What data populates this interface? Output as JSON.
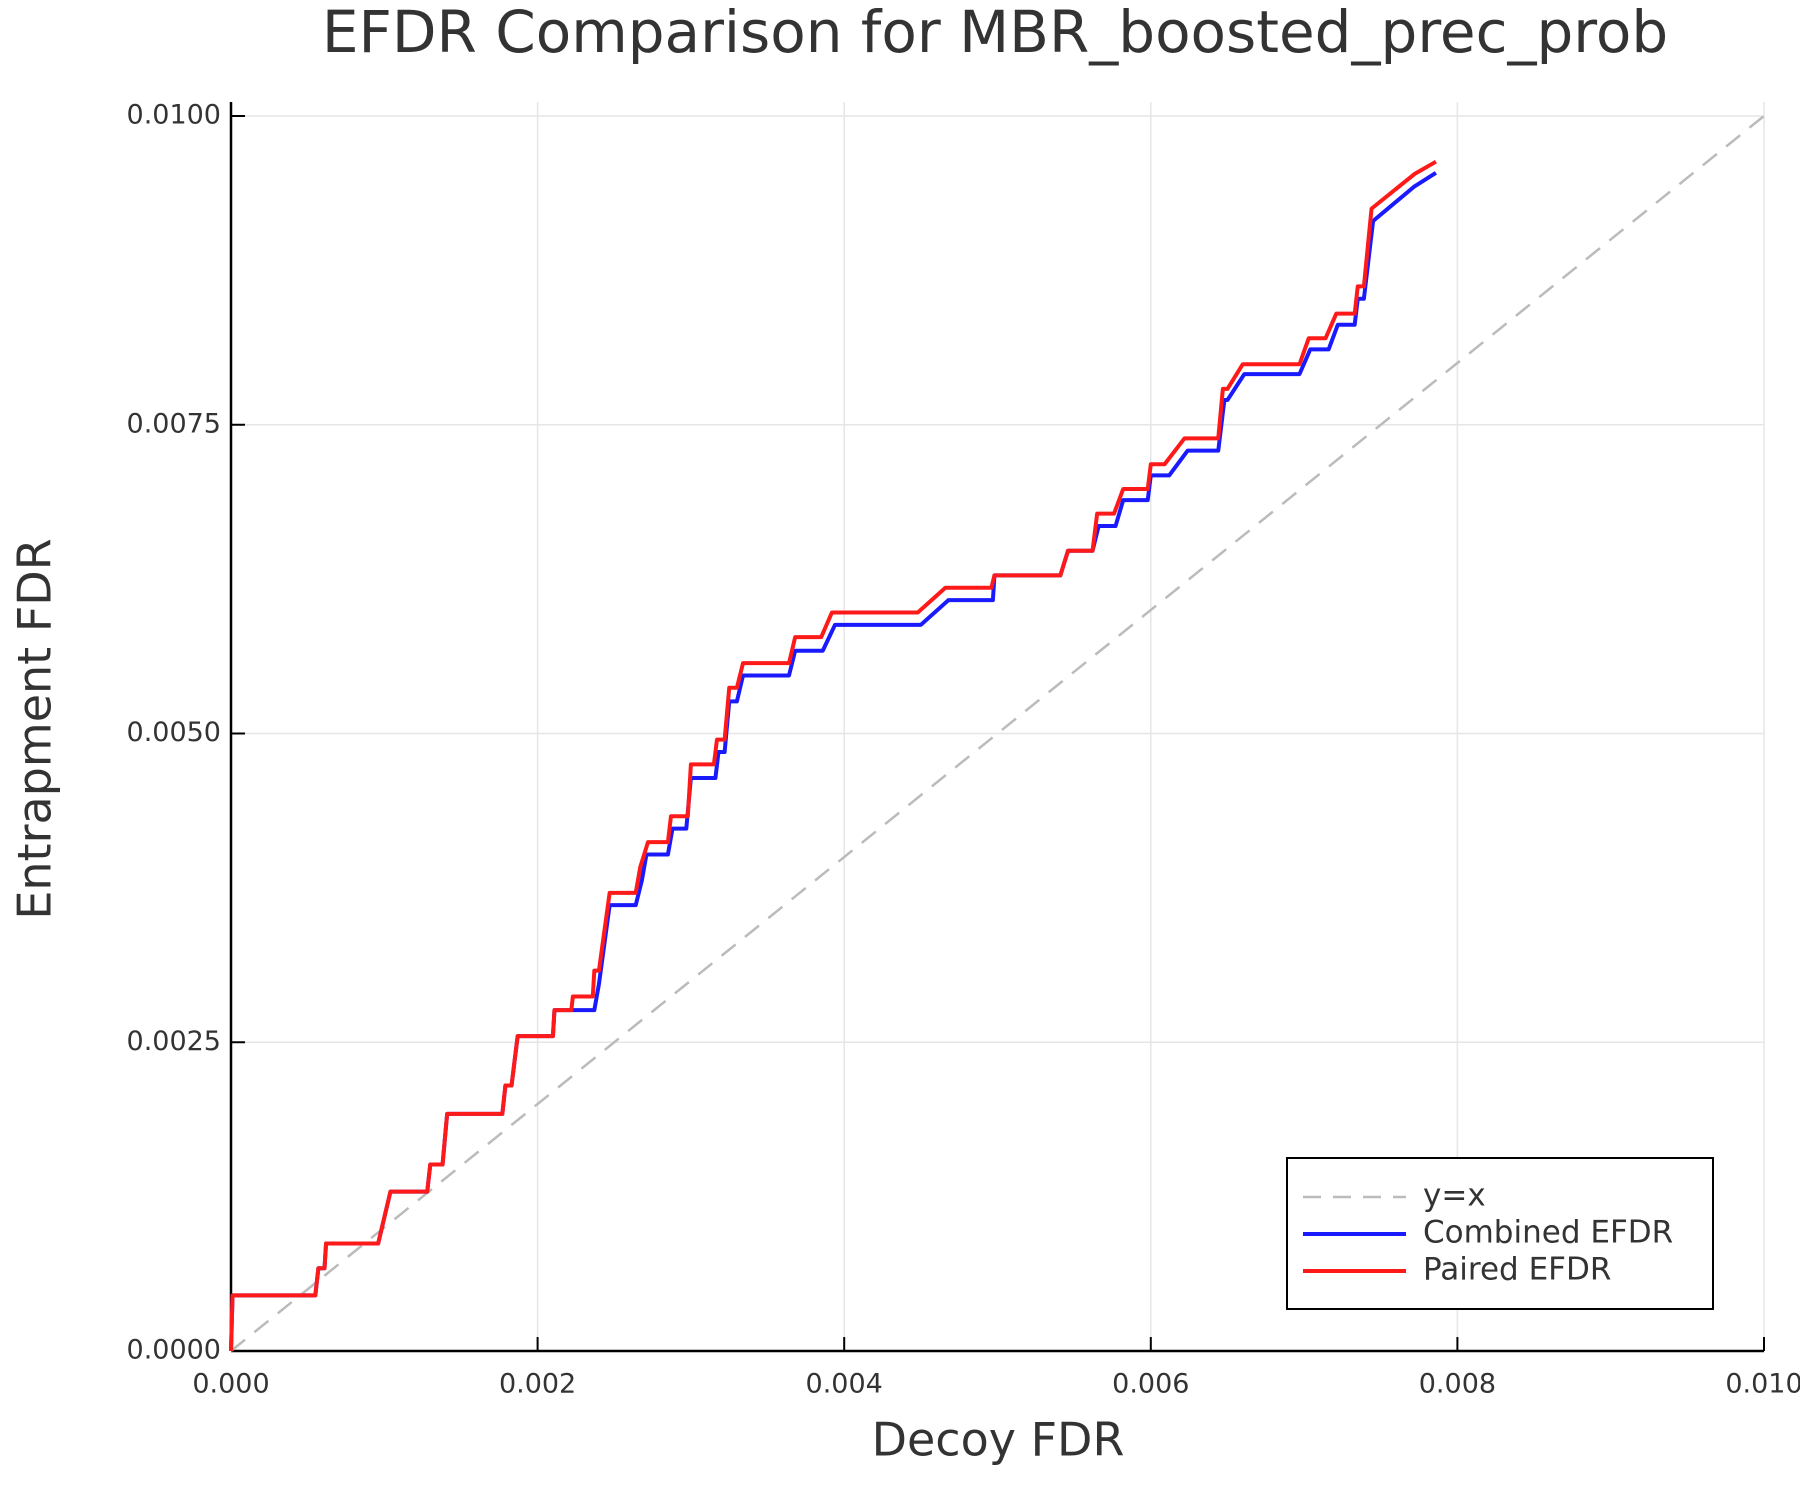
{
  "chart_data": {
    "type": "line",
    "title": "EFDR Comparison for MBR_boosted_prec_prob",
    "xlabel": "Decoy FDR",
    "ylabel": "Entrapment FDR",
    "xlim": [
      0,
      0.01
    ],
    "ylim": [
      0,
      0.01
    ],
    "xticks": [
      {
        "value": 0,
        "label": "0.000"
      },
      0.002,
      0.004,
      0.006,
      0.008,
      {
        "value": 0.01,
        "label": "0.010"
      }
    ],
    "yticks": [
      {
        "value": 0,
        "label": "0.0000"
      },
      0.0025,
      {
        "value": 0.005,
        "label": "0.0050"
      },
      {
        "value": 0.0075,
        "label": "0.0075"
      },
      {
        "value": 0.01,
        "label": "0.0100"
      }
    ],
    "grid": true,
    "legend": "lower right",
    "series": [
      {
        "name": "y=x",
        "color": "#bbbbbb",
        "dash": true,
        "x": [
          0,
          0.01
        ],
        "values": [
          0,
          0.01
        ]
      },
      {
        "name": "Combined EFDR",
        "color": "#1a1aff",
        "dash": false,
        "x": [
          0,
          1e-05,
          0.00055,
          0.00057,
          0.00061,
          0.00062,
          0.00096,
          0.00104,
          0.00128,
          0.0013,
          0.00138,
          0.00141,
          0.00177,
          0.00179,
          0.00183,
          0.00187,
          0.0021,
          0.00211,
          0.00237,
          0.0024,
          0.00247,
          0.00264,
          0.00268,
          0.00271,
          0.00285,
          0.00288,
          0.00297,
          0.003,
          0.00316,
          0.00318,
          0.00322,
          0.00325,
          0.0033,
          0.00334,
          0.00364,
          0.00368,
          0.00386,
          0.00394,
          0.0045,
          0.00468,
          0.00497,
          0.00498,
          0.00541,
          0.00546,
          0.00562,
          0.00566,
          0.00577,
          0.00582,
          0.00598,
          0.006,
          0.00612,
          0.00624,
          0.00644,
          0.00648,
          0.0065,
          0.00661,
          0.00697,
          0.00704,
          0.00716,
          0.00722,
          0.00733,
          0.00735,
          0.00739,
          0.00745,
          0.00772,
          0.00786
        ],
        "values": [
          0,
          0.00045,
          0.00045,
          0.00067,
          0.00067,
          0.00087,
          0.00087,
          0.00129,
          0.00129,
          0.00151,
          0.00151,
          0.00192,
          0.00192,
          0.00215,
          0.00215,
          0.00255,
          0.00255,
          0.00276,
          0.00276,
          0.00297,
          0.00361,
          0.00361,
          0.00381,
          0.00402,
          0.00402,
          0.00423,
          0.00423,
          0.00464,
          0.00464,
          0.00485,
          0.00485,
          0.00526,
          0.00526,
          0.00547,
          0.00547,
          0.00567,
          0.00567,
          0.00588,
          0.00588,
          0.00608,
          0.00608,
          0.00628,
          0.00628,
          0.00648,
          0.00648,
          0.00668,
          0.00668,
          0.00689,
          0.00689,
          0.00709,
          0.00709,
          0.00729,
          0.00729,
          0.0077,
          0.0077,
          0.00791,
          0.00791,
          0.00811,
          0.00811,
          0.00831,
          0.00831,
          0.00852,
          0.00852,
          0.00915,
          0.00943,
          0.00954
        ]
      },
      {
        "name": "Paired EFDR",
        "color": "#ff1a1a",
        "dash": false,
        "x": [
          0,
          1e-05,
          0.00055,
          0.00057,
          0.00061,
          0.00062,
          0.00096,
          0.00104,
          0.00128,
          0.0013,
          0.00138,
          0.00141,
          0.00177,
          0.00179,
          0.00183,
          0.00187,
          0.0021,
          0.00211,
          0.00222,
          0.00223,
          0.00236,
          0.00237,
          0.0024,
          0.00247,
          0.00264,
          0.00267,
          0.00272,
          0.00285,
          0.00287,
          0.00298,
          0.003,
          0.00315,
          0.00317,
          0.00322,
          0.00325,
          0.0033,
          0.00334,
          0.00364,
          0.00368,
          0.00385,
          0.00392,
          0.00448,
          0.00466,
          0.00496,
          0.00498,
          0.00541,
          0.00546,
          0.00562,
          0.00565,
          0.00576,
          0.00582,
          0.00598,
          0.006,
          0.00609,
          0.00622,
          0.00644,
          0.00647,
          0.0065,
          0.0066,
          0.00697,
          0.00703,
          0.00714,
          0.00721,
          0.00733,
          0.00735,
          0.00739,
          0.00744,
          0.00772,
          0.00786
        ],
        "values": [
          0,
          0.00045,
          0.00045,
          0.00067,
          0.00067,
          0.00087,
          0.00087,
          0.00129,
          0.00129,
          0.00151,
          0.00151,
          0.00192,
          0.00192,
          0.00215,
          0.00215,
          0.00255,
          0.00255,
          0.00276,
          0.00276,
          0.00287,
          0.00287,
          0.00308,
          0.00308,
          0.00371,
          0.00371,
          0.00392,
          0.00412,
          0.00412,
          0.00433,
          0.00433,
          0.00475,
          0.00475,
          0.00495,
          0.00495,
          0.00537,
          0.00537,
          0.00557,
          0.00557,
          0.00578,
          0.00578,
          0.00598,
          0.00598,
          0.00618,
          0.00618,
          0.00628,
          0.00628,
          0.00648,
          0.00648,
          0.00678,
          0.00678,
          0.00698,
          0.00698,
          0.00718,
          0.00718,
          0.00739,
          0.00739,
          0.00779,
          0.00779,
          0.00799,
          0.00799,
          0.0082,
          0.0082,
          0.0084,
          0.0084,
          0.00862,
          0.00862,
          0.00925,
          0.00953,
          0.00963
        ]
      }
    ]
  }
}
